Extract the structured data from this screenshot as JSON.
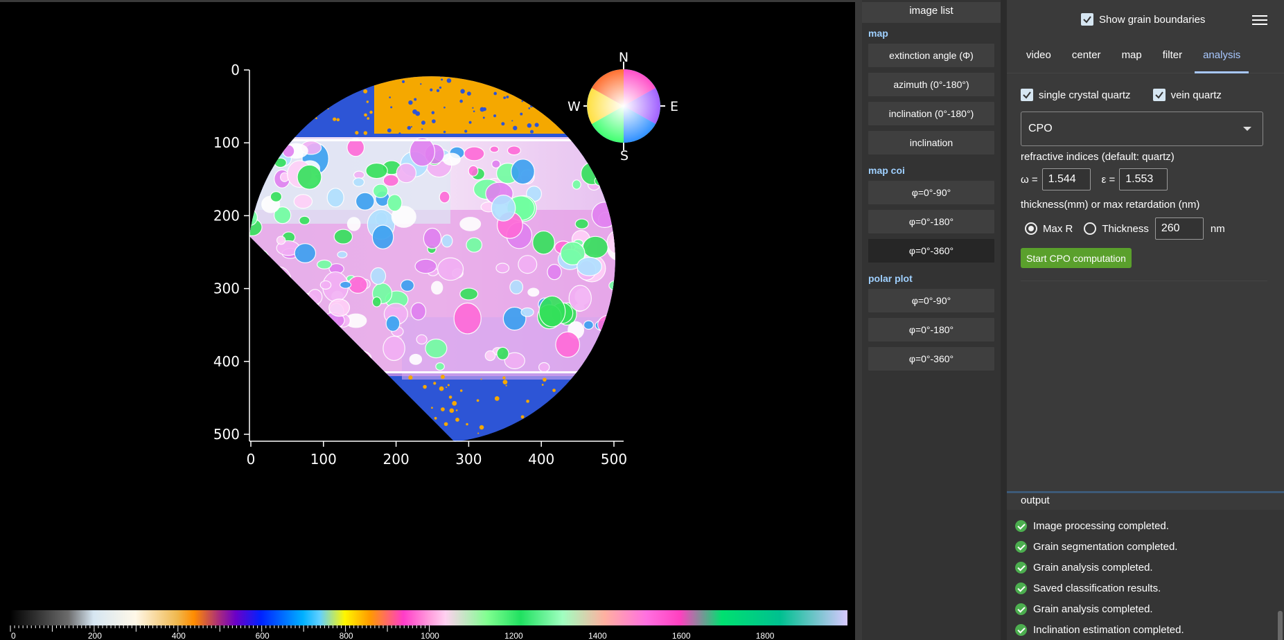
{
  "plot": {
    "x_ticks": [
      "0",
      "100",
      "200",
      "300",
      "400",
      "500"
    ],
    "y_ticks": [
      "0",
      "100",
      "200",
      "300",
      "400",
      "500"
    ],
    "compass": {
      "n": "N",
      "s": "S",
      "e": "E",
      "w": "W"
    }
  },
  "colorbar": {
    "ticks": [
      "0",
      "200",
      "400",
      "600",
      "800",
      "1000",
      "1200",
      "1400",
      "1600",
      "1800"
    ]
  },
  "image_list": {
    "title": "image list",
    "sections": [
      {
        "title": "map",
        "items": [
          "extinction angle (Φ)",
          "azimuth (0°-180°)",
          "inclination (0°-180°)",
          "inclination"
        ]
      },
      {
        "title": "map coi",
        "items": [
          "φ=0°-90°",
          "φ=0°-180°",
          "φ=0°-360°"
        ]
      },
      {
        "title": "polar plot",
        "items": [
          "φ=0°-90°",
          "φ=0°-180°",
          "φ=0°-360°"
        ]
      }
    ],
    "active_item": "map coi / φ=0°-360°"
  },
  "header": {
    "show_grain_boundaries": "Show grain boundaries",
    "show_grain_boundaries_checked": true
  },
  "tabs": [
    "video",
    "center",
    "map",
    "filter",
    "analysis"
  ],
  "active_tab": "analysis",
  "analysis": {
    "single_crystal_label": "single crystal quartz",
    "vein_label": "vein quartz",
    "mode": "CPO",
    "refractive_label": "refractive indices (default: quartz)",
    "omega_label": "ω =",
    "omega_value": "1.544",
    "epsilon_label": "ε =",
    "epsilon_value": "1.553",
    "thickness_label": "thickness(mm) or max retardation (nm)",
    "max_r_label": "Max R",
    "thickness_option_label": "Thickness",
    "retardation_value": "260",
    "unit": "nm",
    "start_button": "Start CPO computation"
  },
  "output": {
    "title": "output",
    "messages": [
      "Image processing completed.",
      "Grain segmentation completed.",
      "Grain analysis completed.",
      "Saved classification results.",
      "Grain analysis completed.",
      "Inclination estimation completed."
    ]
  }
}
